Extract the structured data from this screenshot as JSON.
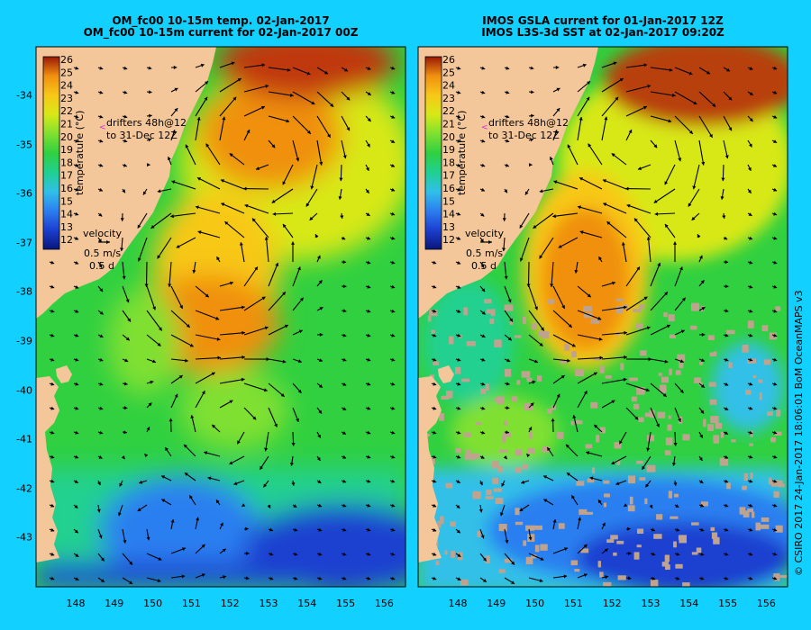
{
  "left_panel": {
    "title_line1": "OM_fc00 10-15m temp. 02-Jan-2017",
    "title_line2": "OM_fc00 10-15m current for 02-Jan-2017 00Z"
  },
  "right_panel": {
    "title_line1": "IMOS GSLA current for 01-Jan-2017 12Z",
    "title_line2": "IMOS L3S-3d SST at 02-Jan-2017 09:20Z"
  },
  "legend": {
    "colorbar_ticks": [
      "26",
      "25",
      "24",
      "23",
      "22",
      "21",
      "20",
      "19",
      "18",
      "17",
      "16",
      "15",
      "14",
      "13",
      "12"
    ],
    "colorbar_label": "temperature (°C)",
    "drifters_line1": "drifters 48h@12",
    "drifters_line2": "to 31-Dec 12Z",
    "velocity_title": "velocity",
    "velocity_speed": "0.5 m/s",
    "velocity_time": "0.5 d"
  },
  "colors": {
    "background": "#12d0ff",
    "land": "#f4c79a",
    "missing_data": "#c0a38f",
    "drifter_marker": "#e020e0",
    "colorscale": [
      "#08167a",
      "#1c3fd0",
      "#2c7ff0",
      "#30c0e8",
      "#20d090",
      "#30d040",
      "#80e030",
      "#d8e818",
      "#f8c818",
      "#f09010",
      "#d85008",
      "#9a1806"
    ]
  },
  "axes": {
    "longitudes": [
      "148",
      "149",
      "150",
      "151",
      "152",
      "153",
      "154",
      "155",
      "156"
    ],
    "latitudes": [
      "-34",
      "-35",
      "-36",
      "-37",
      "-38",
      "-39",
      "-40",
      "-41",
      "-42",
      "-43"
    ]
  },
  "credit": "© CSIRO 2017   24-Jan-2017 18:06:01 BoM OceanMAPS v3"
}
